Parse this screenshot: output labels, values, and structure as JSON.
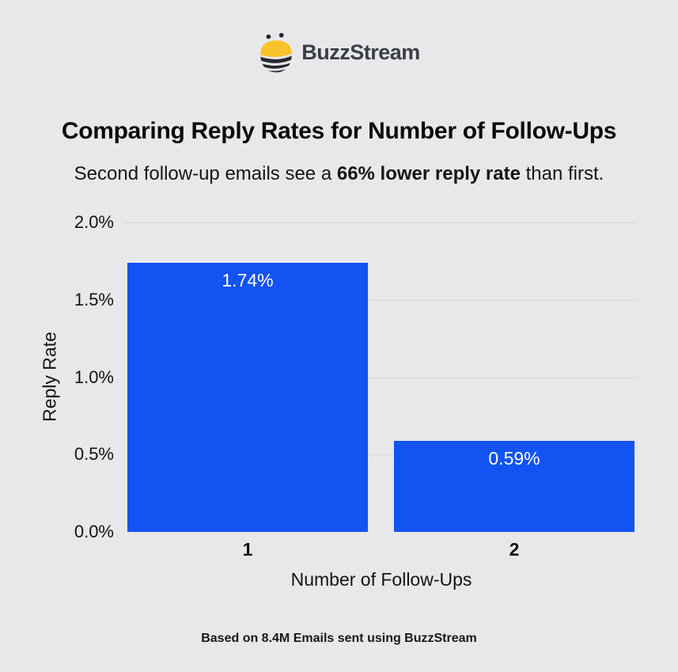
{
  "logo": {
    "brand": "BuzzStream",
    "icon": "bee-icon",
    "icon_colors": {
      "yellow": "#F9C32B",
      "dark": "#26282C"
    }
  },
  "header": {
    "title": "Comparing Reply Rates for Number of Follow-Ups",
    "subtitle": {
      "prefix": "Second follow-up emails see a ",
      "bold": "66% lower reply rate",
      "suffix": " than first."
    }
  },
  "chart_data": {
    "type": "bar",
    "categories": [
      "1",
      "2"
    ],
    "values": [
      1.74,
      0.59
    ],
    "value_labels": [
      "1.74%",
      "0.59%"
    ],
    "xlabel": "Number of Follow-Ups",
    "ylabel": "Reply Rate",
    "ylim": [
      0,
      2.0
    ],
    "ytick_step": 0.5,
    "ytick_labels": [
      "0.0%",
      "0.5%",
      "1.0%",
      "1.5%",
      "2.0%"
    ],
    "grid": "horizontal",
    "legend": false,
    "bar_color": "#1253F2",
    "bar_label_color": "#FFFFFF",
    "background": "#E8E8EA",
    "gridline_color": "#D7D7D9"
  },
  "footer": {
    "note": "Based on 8.4M Emails sent using BuzzStream"
  }
}
